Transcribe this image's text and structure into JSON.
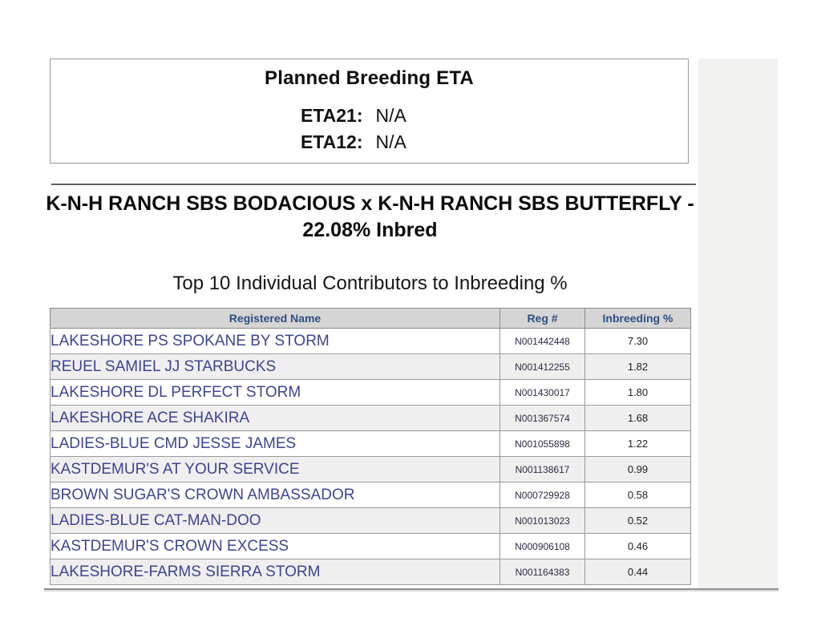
{
  "eta_box": {
    "title": "Planned Breeding ETA",
    "rows": [
      {
        "label": "ETA21:",
        "value": "N/A"
      },
      {
        "label": "ETA12:",
        "value": "N/A"
      }
    ]
  },
  "heading": "K-N-H RANCH SBS BODACIOUS x K-N-H RANCH SBS BUTTERFLY - 22.08% Inbred",
  "subheading": "Top 10 Individual Contributors to Inbreeding %",
  "table": {
    "columns": [
      "Registered Name",
      "Reg #",
      "Inbreeding %"
    ],
    "rows": [
      {
        "name": "LAKESHORE PS SPOKANE BY STORM",
        "reg": "N001442448",
        "inbreeding": "7.30"
      },
      {
        "name": "REUEL SAMIEL JJ STARBUCKS",
        "reg": "N001412255",
        "inbreeding": "1.82"
      },
      {
        "name": "LAKESHORE DL PERFECT STORM",
        "reg": "N001430017",
        "inbreeding": "1.80"
      },
      {
        "name": "LAKESHORE ACE SHAKIRA",
        "reg": "N001367574",
        "inbreeding": "1.68"
      },
      {
        "name": "LADIES-BLUE CMD JESSE JAMES",
        "reg": "N001055898",
        "inbreeding": "1.22"
      },
      {
        "name": "KASTDEMUR'S AT YOUR SERVICE",
        "reg": "N001138617",
        "inbreeding": "0.99"
      },
      {
        "name": "BROWN SUGAR'S CROWN AMBASSADOR",
        "reg": "N000729928",
        "inbreeding": "0.58"
      },
      {
        "name": "LADIES-BLUE CAT-MAN-DOO",
        "reg": "N001013023",
        "inbreeding": "0.52"
      },
      {
        "name": "KASTDEMUR'S CROWN EXCESS",
        "reg": "N000906108",
        "inbreeding": "0.46"
      },
      {
        "name": "LAKESHORE-FARMS SIERRA STORM",
        "reg": "N001164383",
        "inbreeding": "0.44"
      }
    ]
  },
  "colors": {
    "name_link": "#3d4494",
    "header_text": "#2e4d85",
    "header_bg": "#d5d5d5",
    "border": "#8a8a8a"
  }
}
